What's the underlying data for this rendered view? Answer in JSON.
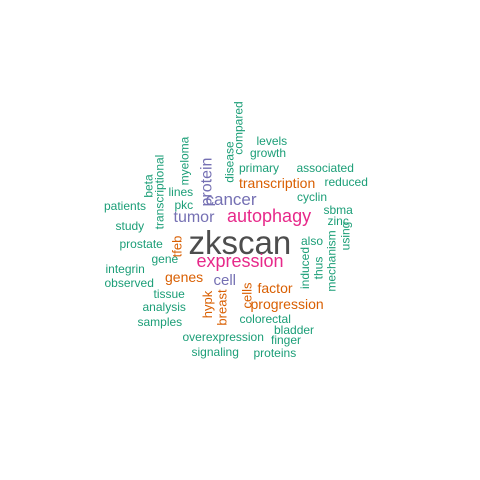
{
  "colors": {
    "gray": "#4d4d4d",
    "pink": "#e7298a",
    "purple": "#7570b3",
    "orange": "#d95f02",
    "green": "#1b9e77"
  },
  "words": [
    {
      "text": "zkscan",
      "color": "gray"
    },
    {
      "text": "expression",
      "color": "pink"
    },
    {
      "text": "autophagy",
      "color": "pink"
    },
    {
      "text": "cancer",
      "color": "purple"
    },
    {
      "text": "tumor",
      "color": "purple"
    },
    {
      "text": "protein",
      "color": "purple"
    },
    {
      "text": "cell",
      "color": "purple"
    },
    {
      "text": "transcription",
      "color": "orange"
    },
    {
      "text": "genes",
      "color": "orange"
    },
    {
      "text": "factor",
      "color": "orange"
    },
    {
      "text": "progression",
      "color": "orange"
    },
    {
      "text": "tfeb",
      "color": "orange"
    },
    {
      "text": "hypk",
      "color": "orange"
    },
    {
      "text": "breast",
      "color": "orange"
    },
    {
      "text": "cells",
      "color": "orange"
    },
    {
      "text": "levels",
      "color": "green"
    },
    {
      "text": "growth",
      "color": "green"
    },
    {
      "text": "primary",
      "color": "green"
    },
    {
      "text": "associated",
      "color": "green"
    },
    {
      "text": "reduced",
      "color": "green"
    },
    {
      "text": "cyclin",
      "color": "green"
    },
    {
      "text": "sbma",
      "color": "green"
    },
    {
      "text": "zinc",
      "color": "green"
    },
    {
      "text": "using",
      "color": "green"
    },
    {
      "text": "also",
      "color": "green"
    },
    {
      "text": "mechanism",
      "color": "green"
    },
    {
      "text": "thus",
      "color": "green"
    },
    {
      "text": "induced",
      "color": "green"
    },
    {
      "text": "compared",
      "color": "green"
    },
    {
      "text": "disease",
      "color": "green"
    },
    {
      "text": "myeloma",
      "color": "green"
    },
    {
      "text": "lines",
      "color": "green"
    },
    {
      "text": "pkc",
      "color": "green"
    },
    {
      "text": "beta",
      "color": "green"
    },
    {
      "text": "transcriptional",
      "color": "green"
    },
    {
      "text": "patients",
      "color": "green"
    },
    {
      "text": "study",
      "color": "green"
    },
    {
      "text": "prostate",
      "color": "green"
    },
    {
      "text": "gene",
      "color": "green"
    },
    {
      "text": "integrin",
      "color": "green"
    },
    {
      "text": "observed",
      "color": "green"
    },
    {
      "text": "tissue",
      "color": "green"
    },
    {
      "text": "analysis",
      "color": "green"
    },
    {
      "text": "samples",
      "color": "green"
    },
    {
      "text": "colorectal",
      "color": "green"
    },
    {
      "text": "bladder",
      "color": "green"
    },
    {
      "text": "finger",
      "color": "green"
    },
    {
      "text": "overexpression",
      "color": "green"
    },
    {
      "text": "signaling",
      "color": "green"
    },
    {
      "text": "proteins",
      "color": "green"
    }
  ]
}
